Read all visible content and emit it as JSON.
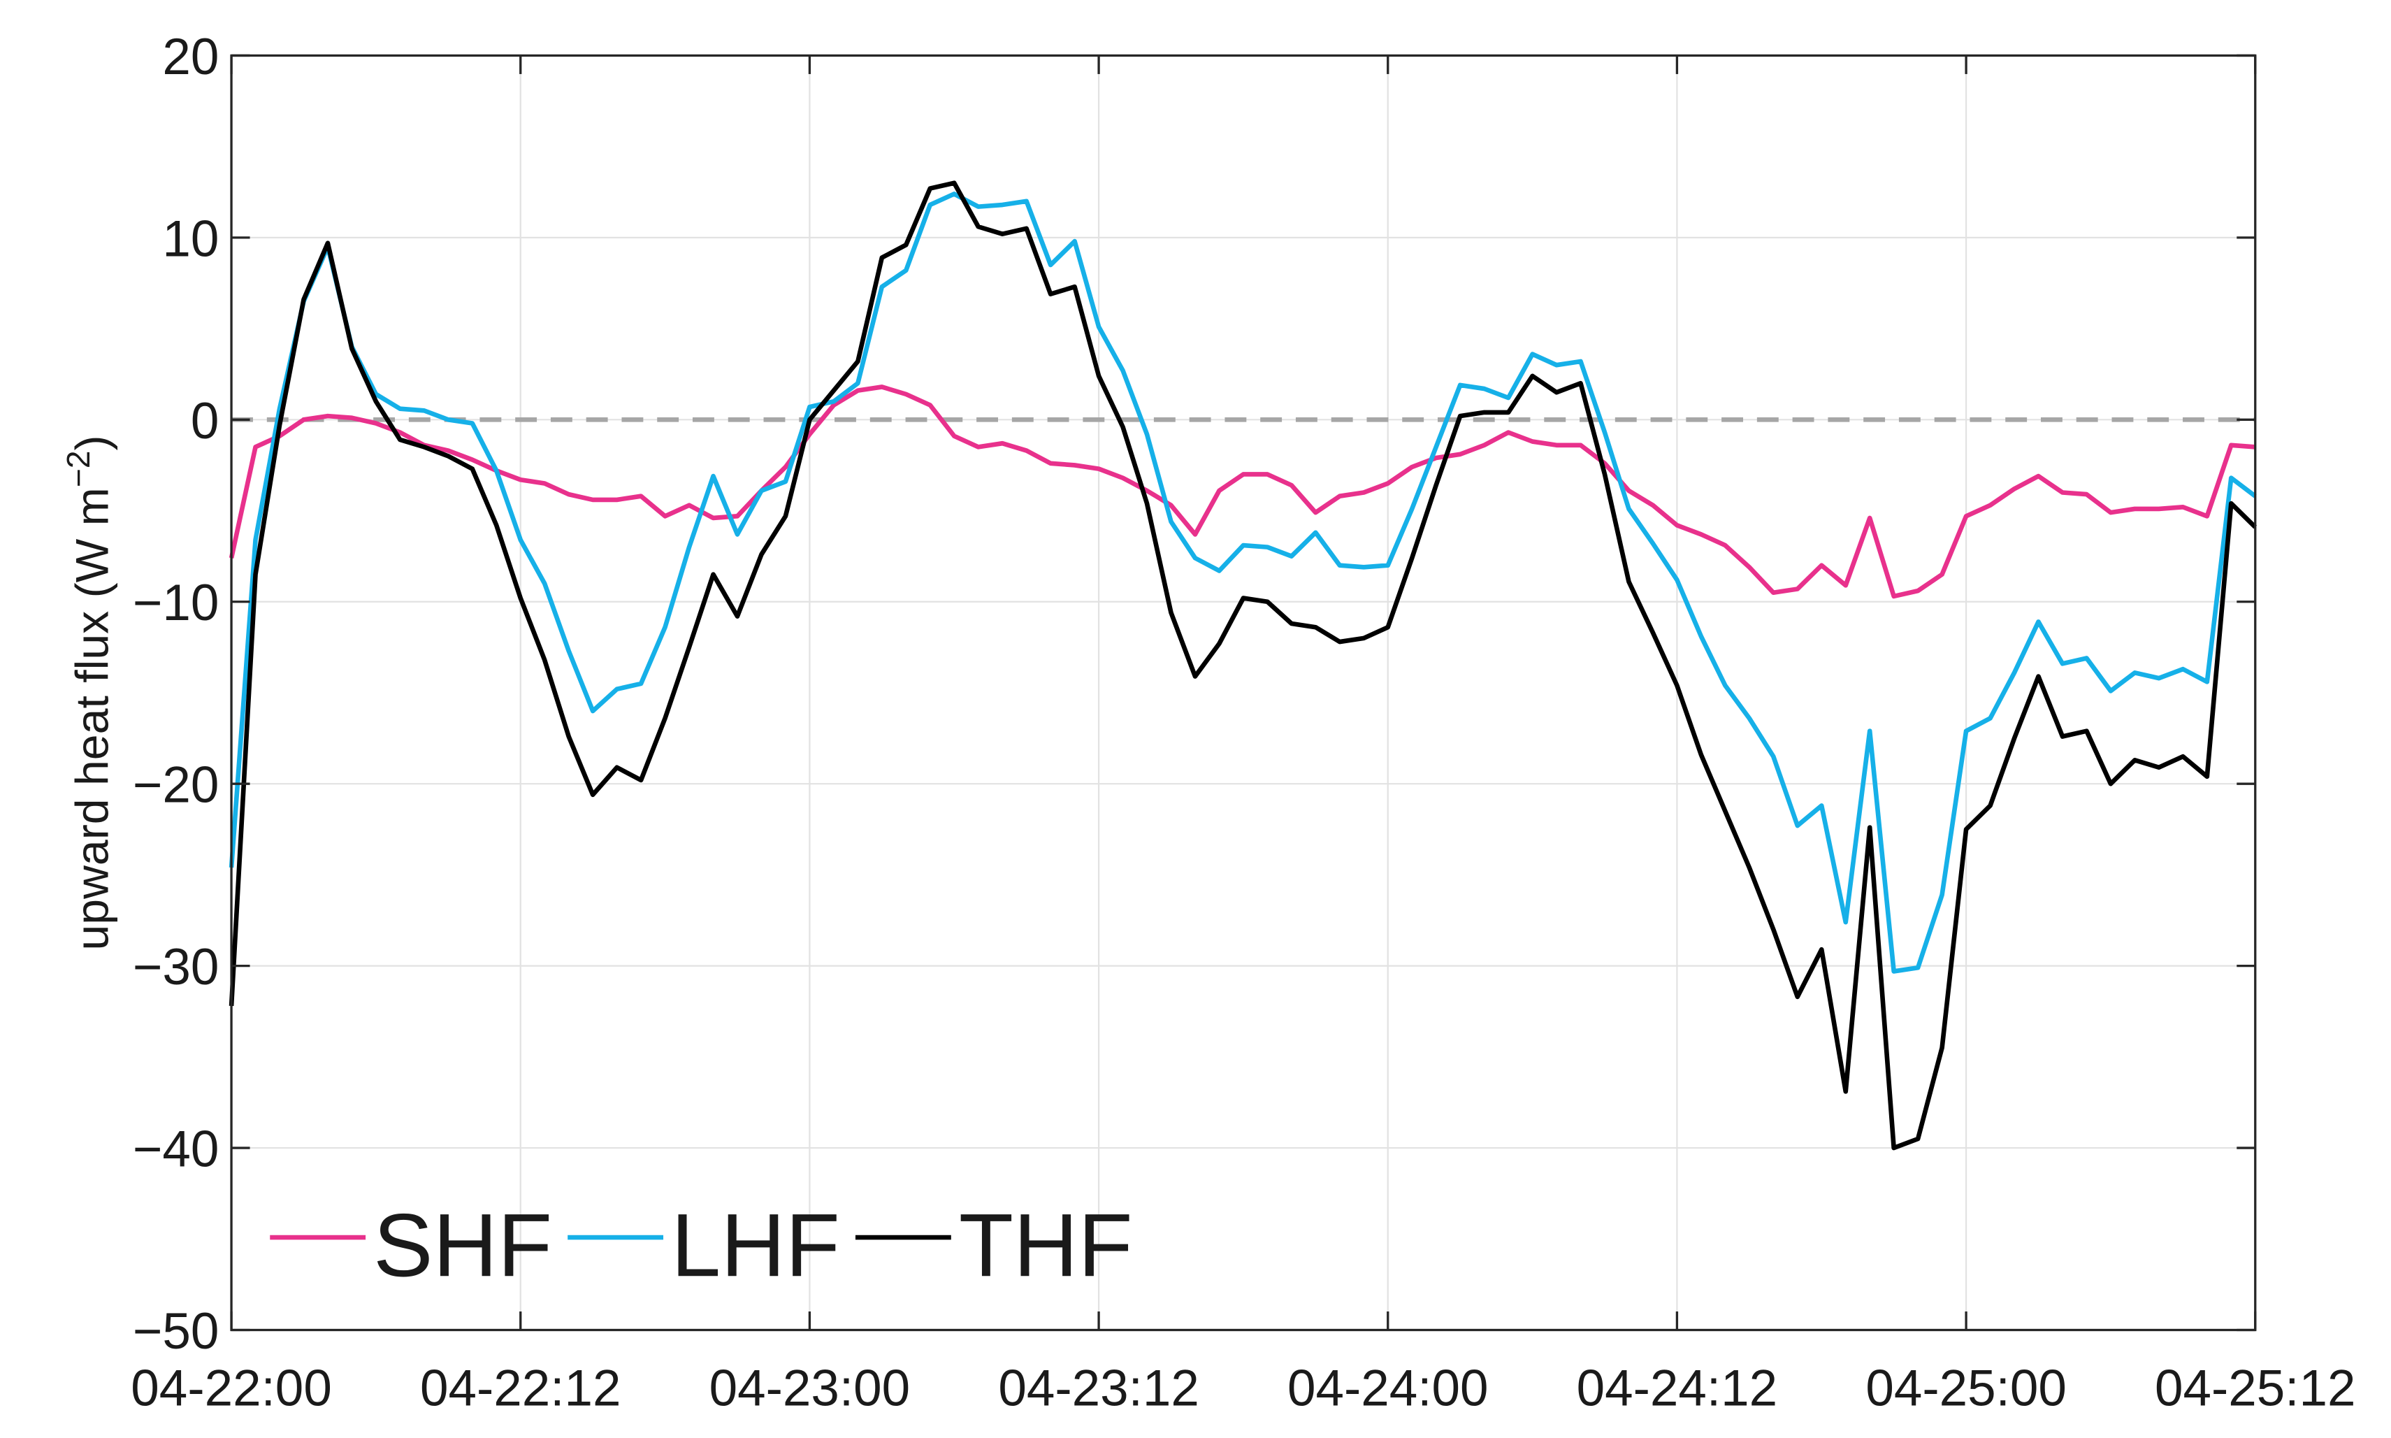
{
  "chart_data": {
    "type": "line",
    "ylabel": [
      "upward heat flux (W m",
      "−2",
      ")"
    ],
    "x": [
      "04-22:00",
      "04-22:01",
      "04-22:02",
      "04-22:03",
      "04-22:04",
      "04-22:05",
      "04-22:06",
      "04-22:07",
      "04-22:08",
      "04-22:09",
      "04-22:10",
      "04-22:11",
      "04-22:12",
      "04-22:13",
      "04-22:14",
      "04-22:15",
      "04-22:16",
      "04-22:17",
      "04-22:18",
      "04-22:19",
      "04-22:20",
      "04-22:21",
      "04-22:22",
      "04-22:23",
      "04-23:00",
      "04-23:01",
      "04-23:02",
      "04-23:03",
      "04-23:04",
      "04-23:05",
      "04-23:06",
      "04-23:07",
      "04-23:08",
      "04-23:09",
      "04-23:10",
      "04-23:11",
      "04-23:12",
      "04-23:13",
      "04-23:14",
      "04-23:15",
      "04-23:16",
      "04-23:17",
      "04-23:18",
      "04-23:19",
      "04-23:20",
      "04-23:21",
      "04-23:22",
      "04-23:23",
      "04-24:00",
      "04-24:01",
      "04-24:02",
      "04-24:03",
      "04-24:04",
      "04-24:05",
      "04-24:06",
      "04-24:07",
      "04-24:08",
      "04-24:09",
      "04-24:10",
      "04-24:11",
      "04-24:12",
      "04-24:13",
      "04-24:14",
      "04-24:15",
      "04-24:16",
      "04-24:17",
      "04-24:18",
      "04-24:19",
      "04-24:20",
      "04-24:21",
      "04-24:22",
      "04-24:23",
      "04-25:00",
      "04-25:01",
      "04-25:02",
      "04-25:03",
      "04-25:04",
      "04-25:05",
      "04-25:06",
      "04-25:07",
      "04-25:08",
      "04-25:09",
      "04-25:10",
      "04-25:11",
      "04-25:12"
    ],
    "xticks": [
      "04-22:00",
      "04-22:12",
      "04-23:00",
      "04-23:12",
      "04-24:00",
      "04-24:12",
      "04-25:00",
      "04-25:12"
    ],
    "series": [
      {
        "name": "SHF",
        "color": "#e8318c",
        "values": [
          -7.6,
          -1.5,
          -0.9,
          0,
          0.2,
          0.1,
          -0.2,
          -0.7,
          -1.4,
          -1.7,
          -2.2,
          -2.8,
          -3.3,
          -3.5,
          -4.1,
          -4.4,
          -4.4,
          -4.2,
          -5.3,
          -4.7,
          -5.4,
          -5.3,
          -3.9,
          -2.6,
          -0.8,
          0.8,
          1.6,
          1.8,
          1.4,
          0.8,
          -0.9,
          -1.5,
          -1.3,
          -1.7,
          -2.4,
          -2.5,
          -2.7,
          -3.2,
          -3.9,
          -4.7,
          -6.3,
          -3.9,
          -3.0,
          -3.0,
          -3.6,
          -5.1,
          -4.2,
          -4.0,
          -3.5,
          -2.6,
          -2.1,
          -1.9,
          -1.4,
          -0.7,
          -1.2,
          -1.4,
          -1.4,
          -2.4,
          -3.9,
          -4.7,
          -5.8,
          -6.3,
          -6.9,
          -8.1,
          -9.5,
          -9.3,
          -8.0,
          -9.1,
          -5.4,
          -9.7,
          -9.4,
          -8.5,
          -5.3,
          -4.7,
          -3.8,
          -3.1,
          -4.0,
          -4.1,
          -5.1,
          -4.9,
          -4.9,
          -4.8,
          -5.3,
          -1.4,
          -1.5
        ]
      },
      {
        "name": "LHF",
        "color": "#16b0e8",
        "values": [
          -24.6,
          -6.6,
          0.6,
          6.5,
          9.5,
          4.0,
          1.4,
          0.6,
          0.5,
          0,
          -0.2,
          -2.8,
          -6.6,
          -9.0,
          -12.7,
          -16.0,
          -14.8,
          -14.5,
          -11.4,
          -7.0,
          -3.1,
          -6.3,
          -3.9,
          -3.4,
          0.7,
          1.0,
          2.0,
          7.3,
          8.2,
          11.8,
          12.4,
          11.7,
          11.8,
          12.0,
          8.5,
          9.8,
          5.1,
          2.7,
          -0.8,
          -5.6,
          -7.6,
          -8.3,
          -6.9,
          -7.0,
          -7.5,
          -6.2,
          -8.0,
          -8.1,
          -8.0,
          -4.9,
          -1.5,
          1.9,
          1.7,
          1.2,
          3.6,
          3.0,
          3.2,
          -0.7,
          -4.9,
          -6.8,
          -8.8,
          -11.9,
          -14.6,
          -16.4,
          -18.5,
          -22.3,
          -21.2,
          -27.6,
          -17.1,
          -30.3,
          -30.1,
          -26.1,
          -17.1,
          -16.4,
          -13.9,
          -11.1,
          -13.4,
          -13.1,
          -14.9,
          -13.9,
          -14.2,
          -13.7,
          -14.4,
          -3.2,
          -4.2
        ]
      },
      {
        "name": "THF",
        "color": "#000000",
        "values": [
          -32.2,
          -8.5,
          -0.3,
          6.6,
          9.7,
          3.9,
          1.0,
          -1.1,
          -1.5,
          -2.0,
          -2.7,
          -5.8,
          -9.8,
          -13.2,
          -17.4,
          -20.6,
          -19.1,
          -19.8,
          -16.4,
          -12.5,
          -8.5,
          -10.8,
          -7.4,
          -5.3,
          0,
          1.6,
          3.2,
          8.9,
          9.6,
          12.7,
          13.0,
          10.6,
          10.2,
          10.5,
          6.9,
          7.3,
          2.4,
          -0.4,
          -4.6,
          -10.6,
          -14.1,
          -12.3,
          -9.8,
          -10.0,
          -11.2,
          -11.4,
          -12.2,
          -12.0,
          -11.4,
          -7.6,
          -3.6,
          0.2,
          0.4,
          0.4,
          2.4,
          1.5,
          2.0,
          -3.0,
          -8.9,
          -11.7,
          -14.6,
          -18.4,
          -21.5,
          -24.6,
          -28.0,
          -31.7,
          -29.1,
          -36.9,
          -22.4,
          -40.0,
          -39.5,
          -34.5,
          -22.5,
          -21.2,
          -17.5,
          -14.1,
          -17.4,
          -17.1,
          -20.0,
          -18.7,
          -19.1,
          -18.5,
          -19.6,
          -4.6,
          -5.9
        ]
      }
    ],
    "ylim": [
      -50,
      20
    ],
    "yticks": [
      {
        "value": -50,
        "label": "−50"
      },
      {
        "value": -40,
        "label": "−40"
      },
      {
        "value": -30,
        "label": "−30"
      },
      {
        "value": -20,
        "label": "−20"
      },
      {
        "value": -10,
        "label": "−10"
      },
      0,
      10,
      20
    ],
    "hline": 0,
    "grid": true,
    "legend": "lower left"
  }
}
